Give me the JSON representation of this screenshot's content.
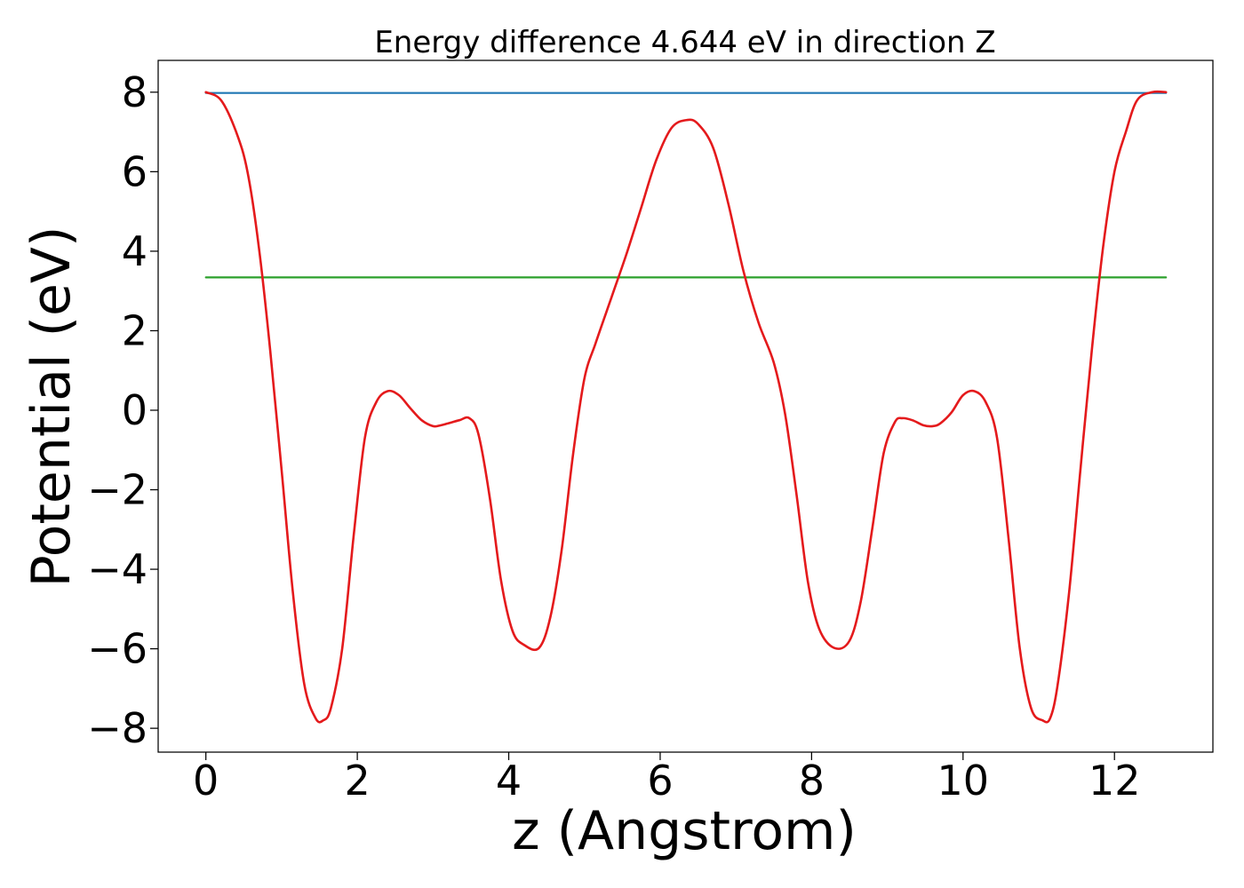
{
  "chart_data": {
    "type": "line",
    "title": "Energy difference 4.644 eV in direction Z",
    "xlabel": "z (Angstrom)",
    "ylabel": "Potential (eV)",
    "xlim": [
      -0.63,
      13.3
    ],
    "ylim": [
      -8.6,
      8.8
    ],
    "xticks": [
      0,
      2,
      4,
      6,
      8,
      10,
      12
    ],
    "xtick_labels": [
      "0",
      "2",
      "4",
      "6",
      "8",
      "10",
      "12"
    ],
    "yticks": [
      -8,
      -6,
      -4,
      -2,
      0,
      2,
      4,
      6,
      8
    ],
    "ytick_labels": [
      "−8",
      "−6",
      "−4",
      "−2",
      "0",
      "2",
      "4",
      "6",
      "8"
    ],
    "grid": false,
    "series": [
      {
        "color": "#1f77b4",
        "x": [
          0,
          12.68
        ],
        "y": [
          7.98,
          7.98
        ]
      },
      {
        "color": "#2ca02c",
        "x": [
          0,
          12.68
        ],
        "y": [
          3.34,
          3.34
        ]
      },
      {
        "color": "#e41a1c",
        "x": [
          0,
          0.2,
          0.4,
          0.55,
          0.7,
          0.85,
          1.0,
          1.15,
          1.3,
          1.45,
          1.55,
          1.65,
          1.8,
          1.95,
          2.1,
          2.25,
          2.4,
          2.55,
          2.7,
          2.85,
          3.0,
          3.1,
          3.2,
          3.35,
          3.48,
          3.6,
          3.75,
          3.9,
          4.05,
          4.2,
          4.4,
          4.55,
          4.7,
          4.85,
          5.0,
          5.15,
          5.35,
          5.55,
          5.75,
          5.95,
          6.15,
          6.35,
          6.5,
          6.7,
          6.9,
          7.1,
          7.3,
          7.5,
          7.65,
          7.8,
          7.95,
          8.1,
          8.3,
          8.5,
          8.65,
          8.8,
          8.95,
          9.1,
          9.2,
          9.33,
          9.48,
          9.6,
          9.7,
          9.85,
          10.0,
          10.15,
          10.3,
          10.45,
          10.6,
          10.75,
          10.9,
          11.05,
          11.15,
          11.25,
          11.4,
          11.55,
          11.7,
          11.85,
          12.0,
          12.15,
          12.3,
          12.5,
          12.68
        ],
        "y": [
          8.0,
          7.8,
          7.0,
          6.0,
          4.1,
          1.5,
          -1.5,
          -4.6,
          -6.9,
          -7.75,
          -7.8,
          -7.5,
          -6.0,
          -3.2,
          -0.7,
          0.2,
          0.48,
          0.38,
          0.05,
          -0.25,
          -0.4,
          -0.38,
          -0.33,
          -0.25,
          -0.2,
          -0.6,
          -2.2,
          -4.3,
          -5.55,
          -5.9,
          -5.98,
          -5.2,
          -3.5,
          -1.1,
          0.8,
          1.7,
          2.8,
          3.9,
          5.1,
          6.3,
          7.1,
          7.3,
          7.2,
          6.6,
          5.2,
          3.5,
          2.2,
          1.2,
          -0.1,
          -2.1,
          -4.3,
          -5.5,
          -5.98,
          -5.8,
          -4.8,
          -3.0,
          -1.1,
          -0.3,
          -0.2,
          -0.25,
          -0.38,
          -0.4,
          -0.33,
          -0.05,
          0.38,
          0.48,
          0.2,
          -0.7,
          -3.2,
          -6.0,
          -7.5,
          -7.8,
          -7.75,
          -6.9,
          -4.6,
          -1.5,
          1.5,
          4.1,
          6.0,
          7.0,
          7.8,
          8.0,
          8.0
        ]
      }
    ]
  }
}
